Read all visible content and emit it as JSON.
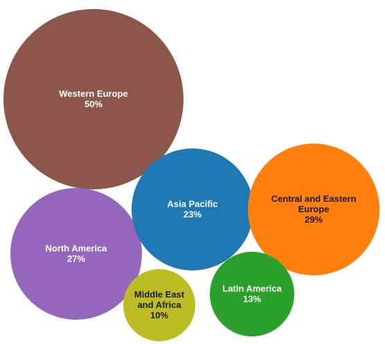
{
  "chart_data": {
    "type": "bubble",
    "title": "",
    "series": [
      {
        "name": "Western Europe",
        "label_lines": [
          "Western Europe"
        ],
        "value": "50%",
        "pct": 50,
        "color": "#8c564b"
      },
      {
        "name": "North America",
        "label_lines": [
          "North America"
        ],
        "value": "27%",
        "pct": 27,
        "color": "#9467bd"
      },
      {
        "name": "Asia Pacific",
        "label_lines": [
          "Asia Pacific"
        ],
        "value": "23%",
        "pct": 23,
        "color": "#1f77b4"
      },
      {
        "name": "Central and Eastern Europe",
        "label_lines": [
          "Central and Eastern",
          "Europe"
        ],
        "value": "29%",
        "pct": 29,
        "color": "#ff7f0e"
      },
      {
        "name": "Middle East and Africa",
        "label_lines": [
          "Middle East",
          "and Africa"
        ],
        "value": "10%",
        "pct": 10,
        "color": "#bcbd22"
      },
      {
        "name": "Latin America",
        "label_lines": [
          "Latin America"
        ],
        "value": "13%",
        "pct": 13,
        "color": "#2ca02c"
      }
    ]
  }
}
